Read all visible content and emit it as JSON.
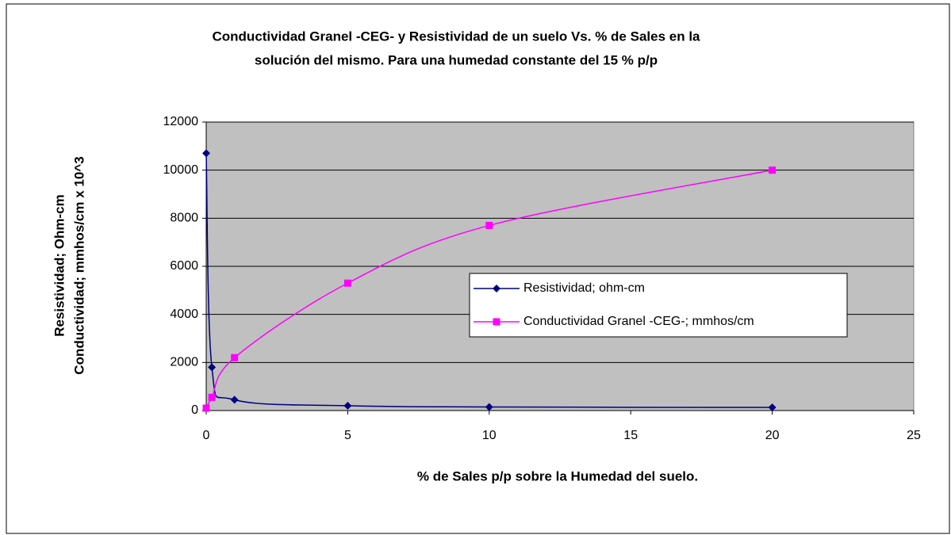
{
  "chart_data": {
    "type": "scatter",
    "title": [
      "Conductividad Granel -CEG- y Resistividad de un suelo Vs. % de Sales en la",
      "solución del mismo.  Para una humedad constante del 15 % p/p"
    ],
    "x_label": "% de Sales p/p sobre la Humedad del suelo.",
    "y_label": [
      "Resistividad; Ohm-cm",
      "Conductividad; mmhos/cm x 10^3"
    ],
    "x": [
      0,
      0.2,
      1,
      5,
      10,
      20
    ],
    "series": [
      {
        "name": "Resistividad; ohm-cm",
        "color": "#000080",
        "marker": "diamond",
        "values": [
          10700,
          1800,
          450,
          200,
          150,
          130
        ]
      },
      {
        "name": "Conductividad Granel -CEG-; mmhos/cm",
        "color": "#ff00ff",
        "marker": "square",
        "values": [
          100,
          550,
          2200,
          5300,
          7700,
          10000
        ]
      }
    ],
    "xlim": [
      0,
      25
    ],
    "xticks": [
      0,
      5,
      10,
      15,
      20,
      25
    ],
    "ylim": [
      0,
      12000
    ],
    "yticks": [
      0,
      2000,
      4000,
      6000,
      8000,
      10000,
      12000
    ],
    "grid": true,
    "smooth": true,
    "legend": "right",
    "plot_background": "#c0c0c0"
  }
}
